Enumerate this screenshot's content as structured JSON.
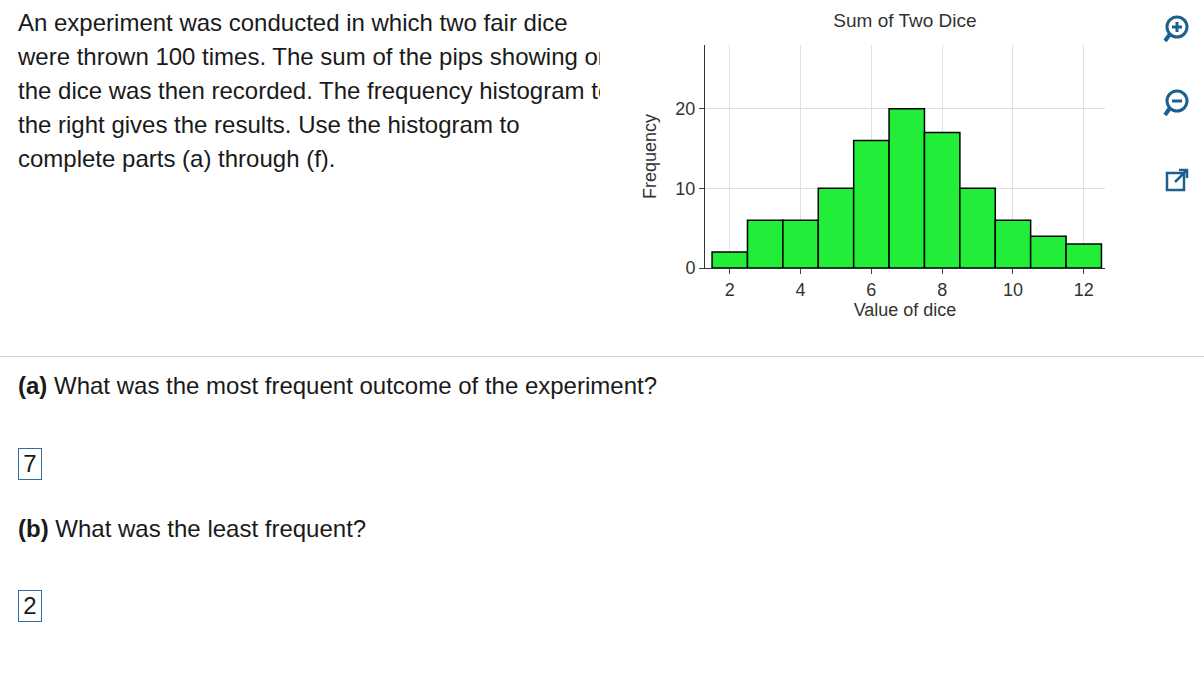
{
  "chart_data": {
    "type": "histogram",
    "title": "Sum of Two Dice",
    "x_label": "Value of dice",
    "y_label": "Frequency",
    "bins": [
      1.5,
      2.5,
      3.5,
      4.5,
      5.5,
      6.5,
      7.5,
      8.5,
      9.5,
      10.5,
      11.5,
      12.5
    ],
    "values": [
      2,
      6,
      6,
      10,
      16,
      20,
      17,
      10,
      6,
      4,
      3
    ],
    "color": "#22ee3a",
    "xlim": [
      1.3,
      12.6
    ],
    "xticks": [
      2,
      4,
      6,
      8,
      10,
      12
    ],
    "ylim": [
      0,
      28
    ],
    "yticks": [
      0,
      10,
      20
    ],
    "grid": true
  },
  "intro": "An experiment was conducted in which two fair dice were thrown 100 times. The sum of the pips showing on the dice was then recorded. The frequency histogram to the right gives the results. Use the histogram to complete parts (a) through (f).",
  "questions": [
    {
      "label": "(a)",
      "text": "What was the most frequent outcome of the experiment?",
      "answer": "7"
    },
    {
      "label": "(b)",
      "text": "What was the least frequent?",
      "answer": "2"
    }
  ]
}
